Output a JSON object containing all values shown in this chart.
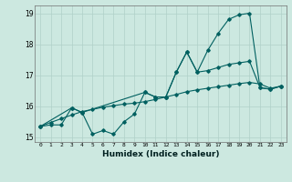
{
  "xlabel": "Humidex (Indice chaleur)",
  "background_color": "#cce8e0",
  "grid_color": "#b0d0c8",
  "line_color": "#006060",
  "xlim": [
    -0.5,
    23.5
  ],
  "ylim": [
    14.85,
    19.25
  ],
  "xticks": [
    0,
    1,
    2,
    3,
    4,
    5,
    6,
    7,
    8,
    9,
    10,
    11,
    12,
    13,
    14,
    15,
    16,
    17,
    18,
    19,
    20,
    21,
    22,
    23
  ],
  "yticks": [
    15,
    16,
    17,
    18,
    19
  ],
  "line1_x": [
    0,
    1,
    2,
    3,
    4,
    5,
    6,
    7,
    8,
    9,
    10,
    11,
    12,
    13,
    14,
    15,
    16,
    17,
    18,
    19,
    20,
    21,
    22,
    23
  ],
  "line1_y": [
    15.35,
    15.4,
    15.4,
    15.95,
    15.8,
    15.1,
    15.22,
    15.1,
    15.5,
    15.75,
    16.45,
    16.3,
    16.3,
    17.1,
    17.75,
    17.1,
    17.15,
    17.25,
    17.35,
    17.4,
    17.45,
    16.6,
    16.55,
    16.65
  ],
  "line2_x": [
    0,
    3,
    4,
    10,
    11,
    12,
    13,
    14,
    15,
    16,
    17,
    18,
    19,
    20,
    21,
    22,
    23
  ],
  "line2_y": [
    15.35,
    15.95,
    15.8,
    16.45,
    16.3,
    16.3,
    17.1,
    17.75,
    17.1,
    17.8,
    18.35,
    18.8,
    18.95,
    19.0,
    16.6,
    16.55,
    16.65
  ],
  "line3_x": [
    0,
    1,
    2,
    3,
    4,
    5,
    6,
    7,
    8,
    9,
    10,
    11,
    12,
    13,
    14,
    15,
    16,
    17,
    18,
    19,
    20,
    21,
    22,
    23
  ],
  "line3_y": [
    15.35,
    15.48,
    15.6,
    15.72,
    15.83,
    15.9,
    15.97,
    16.02,
    16.07,
    16.1,
    16.15,
    16.22,
    16.3,
    16.38,
    16.47,
    16.53,
    16.58,
    16.63,
    16.68,
    16.73,
    16.77,
    16.72,
    16.58,
    16.65
  ]
}
